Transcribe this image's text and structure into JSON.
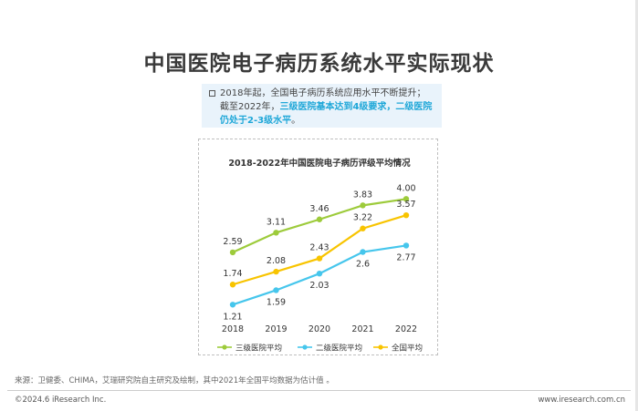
{
  "page": {
    "title": "中国医院电子病历系统水平实际现状",
    "source": "来源：卫健委、CHIMA，艾瑞研究院自主研究及绘制，其中2021年全国平均数据为估计值 。",
    "copyright": "©2024.6 iResearch Inc.",
    "url": "www.iresearch.com.cn"
  },
  "summary": {
    "line1": "2018年起，全国电子病历系统应用水平不断提升；",
    "prefix": "截至2022年，",
    "highlight": "三级医院基本达到4级要求，二级医院仍处于2-3级水平",
    "suffix": "。"
  },
  "colors": {
    "series_tertiary": "#9dcb3b",
    "series_secondary": "#46c6ec",
    "series_national": "#f8c400",
    "highlight_text": "#1fa7d8"
  },
  "chart_data": {
    "type": "line",
    "title": "2018-2022年中国医院电子病历评级平均情况",
    "categories": [
      "2018",
      "2019",
      "2020",
      "2021",
      "2022"
    ],
    "series": [
      {
        "name": "三级医院平均",
        "values": [
          2.59,
          3.11,
          3.46,
          3.83,
          4.0
        ],
        "labels": [
          "2.59",
          "3.11",
          "3.46",
          "3.83",
          "4.00"
        ]
      },
      {
        "name": "二级医院平均",
        "values": [
          1.21,
          1.59,
          2.03,
          2.6,
          2.77
        ],
        "labels": [
          "1.21",
          "1.59",
          "2.03",
          "2.6",
          "2.77"
        ]
      },
      {
        "name": "全国平均",
        "values": [
          1.74,
          2.08,
          2.43,
          3.22,
          3.57
        ],
        "labels": [
          "1.74",
          "2.08",
          "2.43",
          "3.22",
          "3.57"
        ]
      }
    ],
    "ylim": [
      1.0,
      4.2
    ],
    "grid": false,
    "legend": "bottom"
  }
}
